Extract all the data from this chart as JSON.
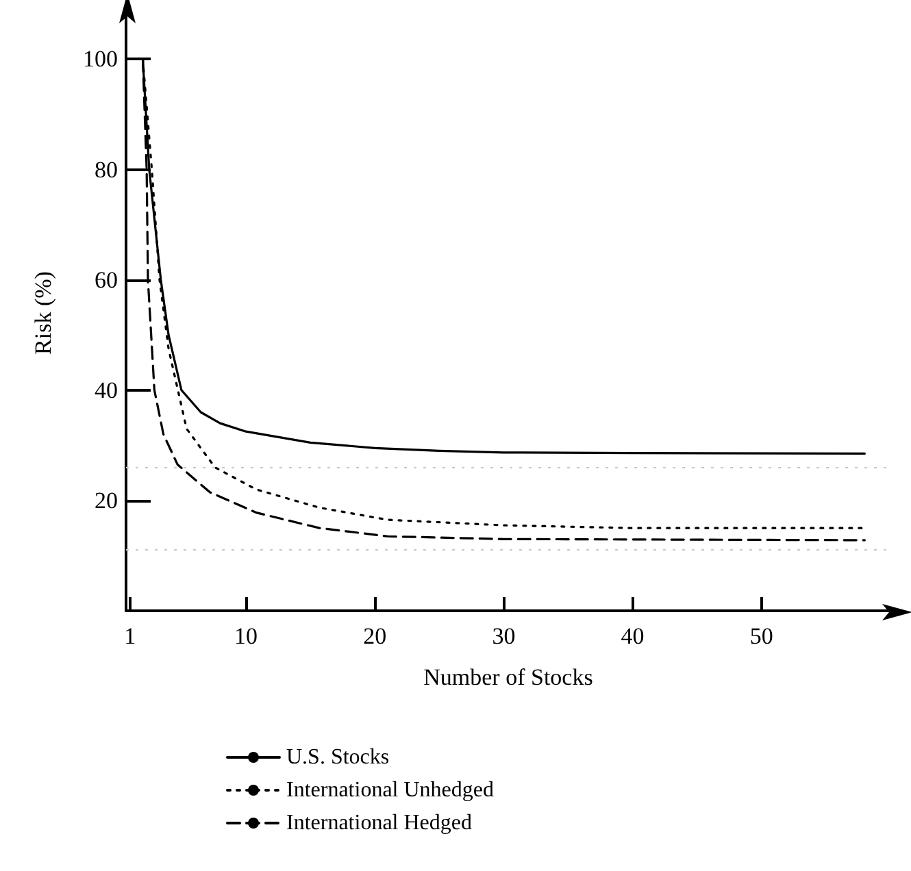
{
  "chart_data": {
    "type": "line",
    "xlabel": "Number of Stocks",
    "ylabel": "Risk (%)",
    "xlim": [
      0.7,
      60
    ],
    "xticks": [
      1,
      10,
      20,
      30,
      40,
      50
    ],
    "ylim": [
      0,
      108
    ],
    "yticks": [
      20,
      40,
      60,
      80,
      100
    ],
    "grid": false,
    "legend": "bottom",
    "marker": "none",
    "ref_lines": [
      {
        "axis": "y",
        "value": 26,
        "color": "#c8c8c8",
        "line_style": "dotted"
      },
      {
        "axis": "y",
        "value": 11,
        "color": "#c8c8c8",
        "line_style": "dotted"
      }
    ],
    "series": [
      {
        "name": "U.S. Stocks",
        "color": "#000000",
        "line_style": "solid",
        "x": [
          2,
          2.5,
          3.4,
          4,
          5,
          6.5,
          8,
          10,
          15,
          20,
          25,
          30,
          40,
          58
        ],
        "values": [
          100,
          80,
          60,
          50,
          40,
          36,
          34,
          32.5,
          30.5,
          29.5,
          29,
          28.7,
          28.6,
          28.5
        ]
      },
      {
        "name": "International Unhedged",
        "color": "#000000",
        "line_style": "dotted",
        "x": [
          2,
          2.7,
          3.3,
          4,
          5.4,
          7.6,
          10.8,
          15.7,
          21,
          30,
          40,
          58
        ],
        "values": [
          100,
          80,
          60,
          47.5,
          33,
          26,
          22,
          18.7,
          16.5,
          15.5,
          15,
          15
        ]
      },
      {
        "name": "International Hedged",
        "color": "#000000",
        "line_style": "dashed",
        "x": [
          2,
          2.3,
          2.4,
          2.9,
          3.6,
          4.7,
          7.2,
          10.8,
          15.7,
          21,
          30,
          58
        ],
        "values": [
          100,
          80,
          60,
          40,
          32,
          26.5,
          21.5,
          17.8,
          15,
          13.5,
          13,
          12.8
        ]
      }
    ]
  }
}
